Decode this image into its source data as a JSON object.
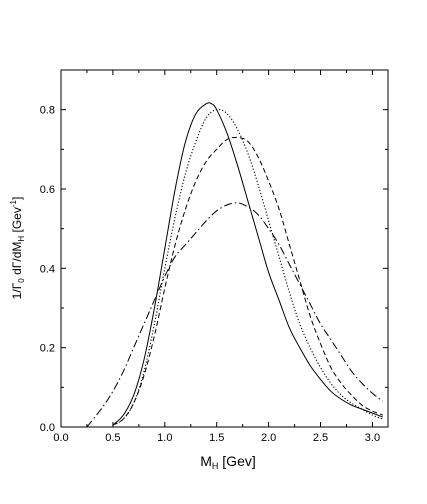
{
  "chart_data": {
    "type": "line",
    "xlabel": {
      "main": "M",
      "sub": "H",
      "unit": " [Gev]"
    },
    "ylabel": {
      "pre": "1/Γ",
      "sub": "0",
      "mid": " dΓ/dM",
      "sub2": "H",
      "unit": " [Gev",
      "sup": "-1",
      "end": "]"
    },
    "xlim": [
      0.0,
      3.15
    ],
    "ylim": [
      0.0,
      0.9
    ],
    "xticks": [
      "0.0",
      "0.5",
      "1.0",
      "1.5",
      "2.0",
      "2.5",
      "3.0"
    ],
    "yticks": [
      "0.0",
      "0.2",
      "0.4",
      "0.6",
      "0.8"
    ],
    "grid": false,
    "series": [
      {
        "style": "solid",
        "color": "#000000",
        "x": [
          0.5,
          0.6,
          0.7,
          0.8,
          0.9,
          1.0,
          1.1,
          1.2,
          1.3,
          1.4,
          1.45,
          1.5,
          1.6,
          1.7,
          1.8,
          1.9,
          2.0,
          2.1,
          2.2,
          2.3,
          2.4,
          2.5,
          2.6,
          2.7,
          2.8,
          2.9,
          3.0,
          3.1
        ],
        "y": [
          0.005,
          0.03,
          0.08,
          0.17,
          0.3,
          0.45,
          0.6,
          0.72,
          0.79,
          0.815,
          0.815,
          0.8,
          0.74,
          0.66,
          0.57,
          0.48,
          0.39,
          0.32,
          0.25,
          0.2,
          0.155,
          0.12,
          0.09,
          0.07,
          0.055,
          0.045,
          0.035,
          0.025
        ]
      },
      {
        "style": "dotted",
        "color": "#000000",
        "x": [
          0.5,
          0.6,
          0.7,
          0.8,
          0.9,
          1.0,
          1.1,
          1.2,
          1.3,
          1.4,
          1.5,
          1.6,
          1.7,
          1.8,
          1.9,
          2.0,
          2.1,
          2.2,
          2.3,
          2.4,
          2.5,
          2.6,
          2.7,
          2.8,
          2.9,
          3.0,
          3.1
        ],
        "y": [
          0.005,
          0.02,
          0.06,
          0.14,
          0.26,
          0.4,
          0.53,
          0.64,
          0.72,
          0.78,
          0.8,
          0.79,
          0.75,
          0.69,
          0.61,
          0.52,
          0.43,
          0.34,
          0.26,
          0.2,
          0.15,
          0.11,
          0.08,
          0.06,
          0.045,
          0.03,
          0.02
        ]
      },
      {
        "style": "dashed",
        "color": "#000000",
        "x": [
          0.5,
          0.6,
          0.7,
          0.8,
          0.9,
          1.0,
          1.1,
          1.2,
          1.3,
          1.4,
          1.5,
          1.6,
          1.7,
          1.8,
          1.9,
          2.0,
          2.1,
          2.2,
          2.3,
          2.4,
          2.5,
          2.6,
          2.7,
          2.8,
          2.9,
          3.0,
          3.1
        ],
        "y": [
          0.005,
          0.02,
          0.06,
          0.13,
          0.23,
          0.35,
          0.46,
          0.55,
          0.62,
          0.67,
          0.7,
          0.725,
          0.73,
          0.72,
          0.68,
          0.62,
          0.55,
          0.46,
          0.37,
          0.28,
          0.21,
          0.15,
          0.11,
          0.08,
          0.055,
          0.04,
          0.03
        ]
      },
      {
        "style": "dashdot",
        "color": "#000000",
        "x": [
          0.25,
          0.4,
          0.5,
          0.6,
          0.7,
          0.8,
          0.9,
          1.0,
          1.1,
          1.2,
          1.3,
          1.4,
          1.5,
          1.6,
          1.7,
          1.8,
          1.9,
          2.0,
          2.1,
          2.2,
          2.3,
          2.4,
          2.5,
          2.6,
          2.7,
          2.8,
          2.9,
          3.0,
          3.1
        ],
        "y": [
          0.0,
          0.05,
          0.09,
          0.14,
          0.2,
          0.26,
          0.32,
          0.38,
          0.43,
          0.46,
          0.49,
          0.52,
          0.545,
          0.56,
          0.565,
          0.555,
          0.535,
          0.5,
          0.46,
          0.41,
          0.36,
          0.31,
          0.26,
          0.22,
          0.18,
          0.14,
          0.11,
          0.085,
          0.065
        ]
      }
    ]
  }
}
